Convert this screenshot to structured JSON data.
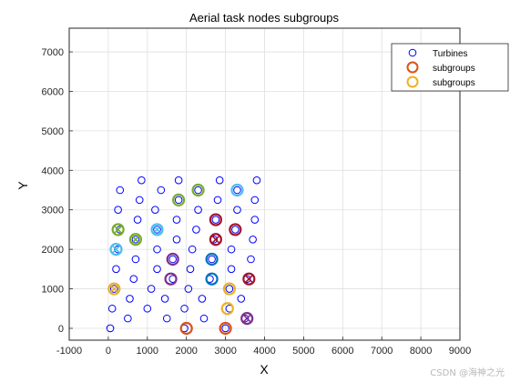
{
  "chart_data": {
    "type": "scatter",
    "title": "Aerial task nodes subgroups",
    "xlabel": "X",
    "ylabel": "Y",
    "xlim": [
      -1000,
      9000
    ],
    "ylim": [
      -300,
      7600
    ],
    "xticks": [
      -1000,
      0,
      1000,
      2000,
      3000,
      4000,
      5000,
      6000,
      7000,
      8000,
      9000
    ],
    "yticks": [
      0,
      1000,
      2000,
      3000,
      4000,
      5000,
      6000,
      7000
    ],
    "grid": true,
    "legend": {
      "placement": "top-right",
      "entries": [
        {
          "label": "Turbines",
          "color": "#0000ff"
        },
        {
          "label": "subgroups",
          "color": "#d95319"
        },
        {
          "label": "subgroups",
          "color": "#edb120"
        }
      ]
    },
    "turbines": {
      "name": "Turbines",
      "color": "#0000ff",
      "points": [
        [
          50,
          0
        ],
        [
          1500,
          250
        ],
        [
          1950,
          0
        ],
        [
          3000,
          0
        ],
        [
          100,
          500
        ],
        [
          1000,
          500
        ],
        [
          1950,
          500
        ],
        [
          3100,
          500
        ],
        [
          150,
          1000
        ],
        [
          1100,
          1000
        ],
        [
          2050,
          1000
        ],
        [
          3100,
          1000
        ],
        [
          500,
          250
        ],
        [
          2450,
          250
        ],
        [
          3500,
          250
        ],
        [
          550,
          750
        ],
        [
          1450,
          750
        ],
        [
          2400,
          750
        ],
        [
          3400,
          750
        ],
        [
          200,
          1500
        ],
        [
          1250,
          1500
        ],
        [
          2100,
          1500
        ],
        [
          3150,
          1500
        ],
        [
          650,
          1250
        ],
        [
          1650,
          1250
        ],
        [
          2600,
          1250
        ],
        [
          3550,
          1250
        ],
        [
          700,
          1750
        ],
        [
          1650,
          1750
        ],
        [
          2650,
          1750
        ],
        [
          3650,
          1750
        ],
        [
          250,
          2000
        ],
        [
          1250,
          2000
        ],
        [
          2150,
          2000
        ],
        [
          3150,
          2000
        ],
        [
          700,
          2250
        ],
        [
          1750,
          2250
        ],
        [
          2700,
          2250
        ],
        [
          3700,
          2250
        ],
        [
          300,
          2500
        ],
        [
          1250,
          2500
        ],
        [
          2250,
          2500
        ],
        [
          3250,
          2500
        ],
        [
          750,
          2750
        ],
        [
          1750,
          2750
        ],
        [
          2750,
          2750
        ],
        [
          3750,
          2750
        ],
        [
          250,
          3000
        ],
        [
          1200,
          3000
        ],
        [
          2300,
          3000
        ],
        [
          3300,
          3000
        ],
        [
          800,
          3250
        ],
        [
          1800,
          3250
        ],
        [
          2800,
          3250
        ],
        [
          3750,
          3250
        ],
        [
          300,
          3500
        ],
        [
          1350,
          3500
        ],
        [
          2300,
          3500
        ],
        [
          3300,
          3500
        ],
        [
          850,
          3750
        ],
        [
          1800,
          3750
        ],
        [
          2850,
          3750
        ],
        [
          3800,
          3750
        ]
      ]
    },
    "subgroups": [
      {
        "color": "#d95319",
        "points": [
          [
            2000,
            0
          ],
          [
            3000,
            0
          ]
        ]
      },
      {
        "color": "#edb120",
        "points": [
          [
            3050,
            500
          ],
          [
            3100,
            1000
          ],
          [
            150,
            1000
          ]
        ]
      },
      {
        "color": "#7e2f8e",
        "points": [
          [
            1650,
            1750
          ],
          [
            1600,
            1250
          ],
          [
            3550,
            250
          ]
        ]
      },
      {
        "color": "#77ac30",
        "points": [
          [
            2300,
            3500
          ],
          [
            1800,
            3250
          ],
          [
            250,
            2500
          ],
          [
            700,
            2250
          ]
        ]
      },
      {
        "color": "#4dbeee",
        "points": [
          [
            3300,
            3500
          ],
          [
            1250,
            2500
          ],
          [
            200,
            2000
          ]
        ]
      },
      {
        "color": "#a2142f",
        "points": [
          [
            2750,
            2750
          ],
          [
            3250,
            2500
          ],
          [
            2750,
            2250
          ],
          [
            3600,
            1250
          ]
        ]
      },
      {
        "color": "#0072bd",
        "points": [
          [
            2650,
            1750
          ],
          [
            2650,
            1250
          ]
        ]
      }
    ],
    "crosses": [
      {
        "color": "#77ac30",
        "points": [
          [
            250,
            2500
          ],
          [
            700,
            2250
          ]
        ]
      },
      {
        "color": "#4dbeee",
        "points": [
          [
            1250,
            2500
          ],
          [
            200,
            2000
          ]
        ]
      },
      {
        "color": "#a2142f",
        "points": [
          [
            2750,
            2250
          ],
          [
            3600,
            1250
          ]
        ]
      },
      {
        "color": "#7e2f8e",
        "points": [
          [
            3550,
            250
          ]
        ]
      },
      {
        "color": "#edb120",
        "points": [
          [
            150,
            1000
          ]
        ]
      }
    ]
  },
  "watermark": "CSDN @海神之光"
}
